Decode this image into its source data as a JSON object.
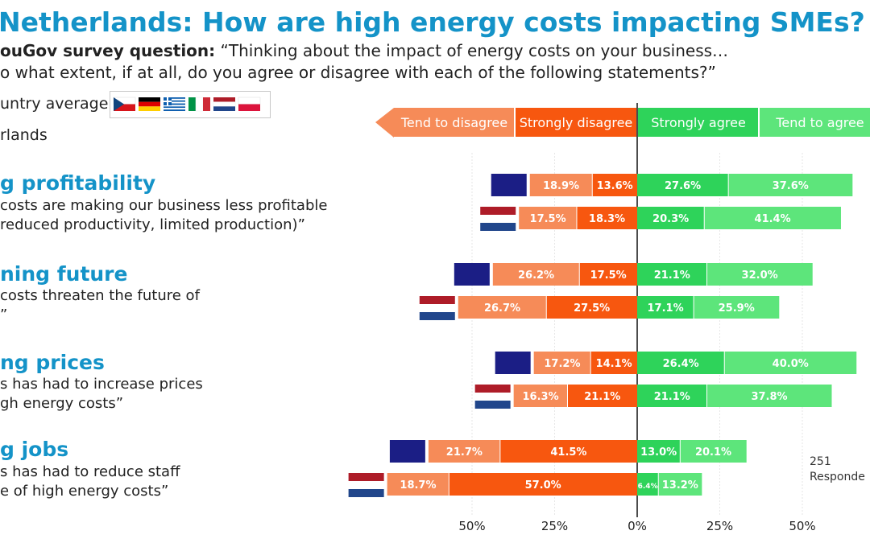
{
  "header": {
    "title": "Netherlands: How are high energy costs impacting SMEs?",
    "question_lead": "ouGov survey question:",
    "question_line1": "“Thinking about the impact of energy costs on your business…",
    "question_line2": "o what extent, if at all, do you agree or disagree with each of the following statements?”"
  },
  "legend_labels": {
    "average": "untry average",
    "country": "rlands"
  },
  "categories": [
    {
      "title": "g profitability",
      "desc1": "costs are making our business less profitable",
      "desc2": "reduced productivity, limited production)”"
    },
    {
      "title": "ning future",
      "desc1": "costs threaten the future of",
      "desc2": "”"
    },
    {
      "title": "ng prices",
      "desc1": "s has had to increase prices",
      "desc2": "gh energy costs”"
    },
    {
      "title": "g jobs",
      "desc1": "s has had to reduce staff",
      "desc2": "e of high energy costs”"
    }
  ],
  "respondents": {
    "line1": "251",
    "line2": "Responde"
  },
  "colors": {
    "tend_disagree": "#f68b58",
    "strongly_disagree": "#f7570f",
    "strongly_agree": "#2ed35a",
    "tend_agree": "#5de57b",
    "eu_flag": "#1b1e85",
    "title_blue": "#1493c8",
    "nl_red": "#ae1c28",
    "nl_blue": "#21468b"
  },
  "chart_data": {
    "type": "bar",
    "orientation": "horizontal",
    "stacked": "diverging",
    "legend": [
      "Tend to disagree",
      "Strongly disagree",
      "Strongly agree",
      "Tend to agree"
    ],
    "xlim": [
      -50,
      50
    ],
    "x_ticks": [
      "50%",
      "25%",
      "0%",
      "25%",
      "50%"
    ],
    "groups": [
      "g profitability",
      "ning future",
      "ng prices",
      "g jobs"
    ],
    "rows": [
      {
        "group": 0,
        "series": "Country average",
        "tend_disagree": 18.9,
        "strongly_disagree": 13.6,
        "strongly_agree": 27.6,
        "tend_agree": 37.6,
        "labels": [
          "18.9%",
          "13.6%",
          "27.6%",
          "37.6%"
        ]
      },
      {
        "group": 0,
        "series": "Netherlands",
        "tend_disagree": 17.5,
        "strongly_disagree": 18.3,
        "strongly_agree": 20.3,
        "tend_agree": 41.4,
        "labels": [
          "17.5%",
          "18.3%",
          "20.3%",
          "41.4%"
        ]
      },
      {
        "group": 1,
        "series": "Country average",
        "tend_disagree": 26.2,
        "strongly_disagree": 17.5,
        "strongly_agree": 21.1,
        "tend_agree": 32.0,
        "labels": [
          "26.2%",
          "17.5%",
          "21.1%",
          "32.0%"
        ]
      },
      {
        "group": 1,
        "series": "Netherlands",
        "tend_disagree": 26.7,
        "strongly_disagree": 27.5,
        "strongly_agree": 17.1,
        "tend_agree": 25.9,
        "labels": [
          "26.7%",
          "27.5%",
          "17.1%",
          "25.9%"
        ]
      },
      {
        "group": 2,
        "series": "Country average",
        "tend_disagree": 17.2,
        "strongly_disagree": 14.1,
        "strongly_agree": 26.4,
        "tend_agree": 40.0,
        "labels": [
          "17.2%",
          "14.1%",
          "26.4%",
          "40.0%"
        ]
      },
      {
        "group": 2,
        "series": "Netherlands",
        "tend_disagree": 16.3,
        "strongly_disagree": 21.1,
        "strongly_agree": 21.1,
        "tend_agree": 37.8,
        "labels": [
          "16.3%",
          "21.1%",
          "21.1%",
          "37.8%"
        ]
      },
      {
        "group": 3,
        "series": "Country average",
        "tend_disagree": 21.7,
        "strongly_disagree": 41.5,
        "strongly_agree": 13.0,
        "tend_agree": 20.1,
        "labels": [
          "21.7%",
          "41.5%",
          "13.0%",
          "20.1%"
        ]
      },
      {
        "group": 3,
        "series": "Netherlands",
        "tend_disagree": 18.7,
        "strongly_disagree": 57.0,
        "strongly_agree": 6.4,
        "tend_agree": 13.2,
        "labels": [
          "18.7%",
          "57.0%",
          "6.4%",
          "13.2%"
        ]
      }
    ]
  }
}
